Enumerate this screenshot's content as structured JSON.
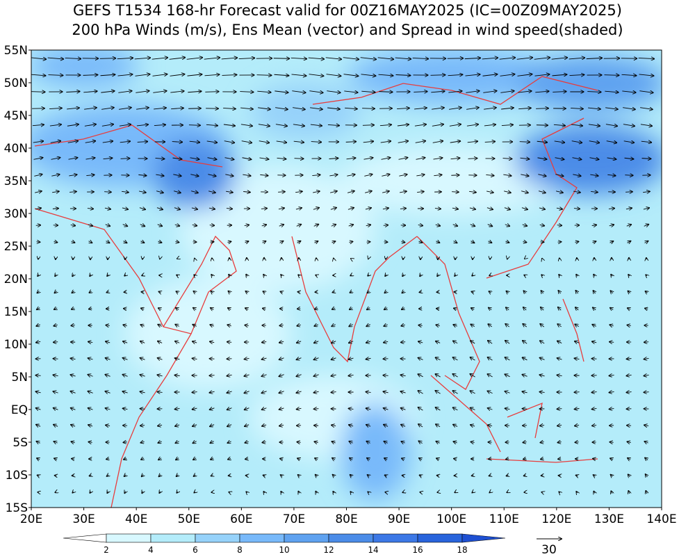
{
  "header": {
    "title": "GEFS T1534 168-hr Forecast valid for 00Z16MAY2025 (IC=00Z09MAY2025)",
    "subtitle": "200 hPa Winds (m/s), Ens Mean (vector) and Spread in wind speed(shaded)"
  },
  "map": {
    "lat_labels": [
      "55N",
      "50N",
      "45N",
      "40N",
      "35N",
      "30N",
      "25N",
      "20N",
      "15N",
      "10N",
      "5N",
      "EQ",
      "5S",
      "10S",
      "15S"
    ],
    "lon_labels": [
      "20E",
      "30E",
      "40E",
      "50E",
      "60E",
      "70E",
      "80E",
      "90E",
      "100E",
      "110E",
      "120E",
      "130E",
      "140E"
    ]
  },
  "colorbar": {
    "labels": [
      "2",
      "4",
      "6",
      "8",
      "10",
      "12",
      "14",
      "16",
      "18"
    ],
    "colors": [
      "#ffffff",
      "#d8f8ff",
      "#b4ecfa",
      "#96d2fa",
      "#78b9fa",
      "#5fa2f0",
      "#4b8ce8",
      "#3c78e6",
      "#2864dc",
      "#1e50d2"
    ]
  },
  "reference_vector": {
    "label": "30"
  }
}
